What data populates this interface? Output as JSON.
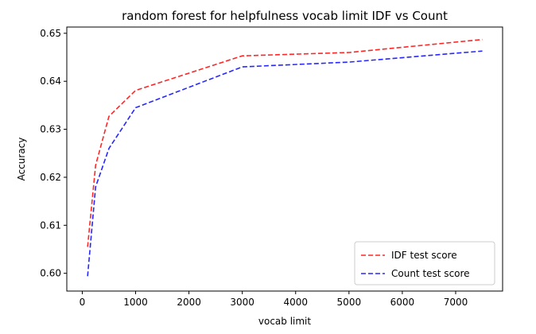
{
  "chart_data": {
    "type": "line",
    "title": "random forest for helpfulness vocab limit IDF vs Count",
    "xlabel": "vocab limit",
    "ylabel": "Accuracy",
    "xlim": [
      -290,
      7880
    ],
    "ylim": [
      0.5963,
      0.6513
    ],
    "xticks": [
      0,
      1000,
      2000,
      3000,
      4000,
      5000,
      6000,
      7000
    ],
    "xtick_labels": [
      "0",
      "1000",
      "2000",
      "3000",
      "4000",
      "5000",
      "6000",
      "7000"
    ],
    "yticks": [
      0.6,
      0.61,
      0.62,
      0.63,
      0.64,
      0.65
    ],
    "ytick_labels": [
      "0.60",
      "0.61",
      "0.62",
      "0.63",
      "0.64",
      "0.65"
    ],
    "legend_position": "lower-right",
    "grid": false,
    "series": [
      {
        "name": "IDF test score",
        "color": "#ff0000",
        "style": "dashed",
        "x": [
          100,
          250,
          500,
          1000,
          3000,
          5000,
          7500
        ],
        "y": [
          0.6055,
          0.6225,
          0.6327,
          0.6381,
          0.6453,
          0.646,
          0.6487
        ]
      },
      {
        "name": "Count test score",
        "color": "#0000ff",
        "style": "dashed",
        "x": [
          100,
          250,
          500,
          1000,
          3000,
          5000,
          7500
        ],
        "y": [
          0.5994,
          0.618,
          0.626,
          0.6345,
          0.643,
          0.644,
          0.6463
        ]
      }
    ]
  }
}
